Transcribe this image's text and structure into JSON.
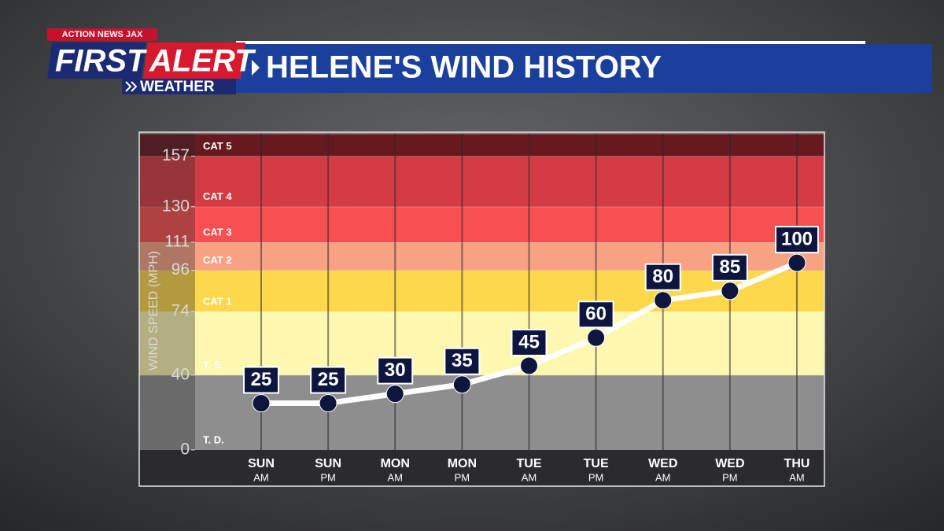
{
  "header": {
    "network": "ACTION NEWS JAX",
    "logo_first": "FIRST",
    "logo_alert": "ALERT",
    "logo_weather": "WEATHER"
  },
  "chart_data": {
    "type": "line",
    "title": "HELENE'S WIND HISTORY",
    "y_label": "WIND SPEED (MPH)",
    "categories": [
      "SUN",
      "SUN",
      "MON",
      "MON",
      "TUE",
      "TUE",
      "WED",
      "WED",
      "THU"
    ],
    "periods": [
      "AM",
      "PM",
      "AM",
      "PM",
      "AM",
      "PM",
      "AM",
      "PM",
      "AM"
    ],
    "series": [
      {
        "name": "Wind speed",
        "color": "#ffffff",
        "values": [
          25,
          25,
          30,
          35,
          45,
          60,
          80,
          85,
          100
        ]
      }
    ],
    "ylim": [
      0,
      169
    ],
    "yticks": [
      0,
      40,
      74,
      96,
      111,
      130,
      157
    ],
    "bands": [
      {
        "label": "T. D.",
        "from": 0,
        "color": "#8e8e8e"
      },
      {
        "label": "T. S.",
        "from": 40,
        "color": "#fdf7b0"
      },
      {
        "label": "CAT 1",
        "from": 74,
        "color": "#fdd84c"
      },
      {
        "label": "CAT 2",
        "from": 96,
        "color": "#f8a183"
      },
      {
        "label": "CAT 3",
        "from": 111,
        "color": "#f84f52"
      },
      {
        "label": "CAT 4",
        "from": 130,
        "color": "#d33c44"
      },
      {
        "label": "CAT 5",
        "from": 157,
        "color": "#661a1f"
      }
    ],
    "grid": true
  }
}
